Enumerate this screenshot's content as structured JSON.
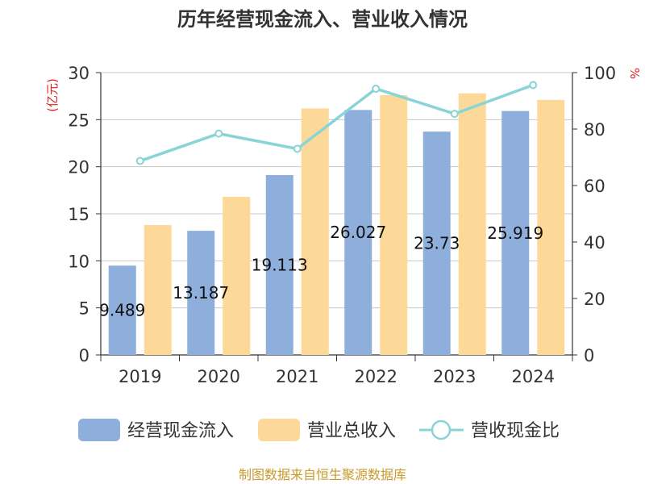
{
  "chart_data": {
    "type": "bar",
    "title": "历年经营现金流入、营业收入情况",
    "categories": [
      "2019",
      "2020",
      "2021",
      "2022",
      "2023",
      "2024"
    ],
    "y_left": {
      "unit": "(亿元)",
      "range": [
        0,
        30
      ],
      "ticks": [
        "0",
        "5",
        "10",
        "15",
        "20",
        "25",
        "30"
      ],
      "unit_color": "#e02020"
    },
    "y_right": {
      "unit": "%",
      "range": [
        0,
        100
      ],
      "ticks": [
        "0",
        "20",
        "40",
        "60",
        "80",
        "100"
      ],
      "unit_color": "#e02020"
    },
    "series": [
      {
        "name": "经营现金流入",
        "kind": "bar",
        "axis": "left",
        "color": "#8eaedb",
        "values": [
          9.489,
          13.187,
          19.113,
          26.027,
          23.73,
          25.919
        ],
        "labels": [
          "9.489",
          "13.187",
          "19.113",
          "26.027",
          "23.73",
          "25.919"
        ]
      },
      {
        "name": "营业总收入",
        "kind": "bar",
        "axis": "left",
        "color": "#fdd999",
        "values": [
          13.8,
          16.8,
          26.2,
          27.6,
          27.8,
          27.1
        ]
      },
      {
        "name": "营收现金比",
        "kind": "line",
        "axis": "right",
        "color": "#88d4d6",
        "values": [
          68.7,
          78.4,
          73.0,
          94.3,
          85.4,
          95.6
        ]
      }
    ],
    "grid": true,
    "legend_position": "bottom"
  },
  "source": "制图数据来自恒生聚源数据库"
}
